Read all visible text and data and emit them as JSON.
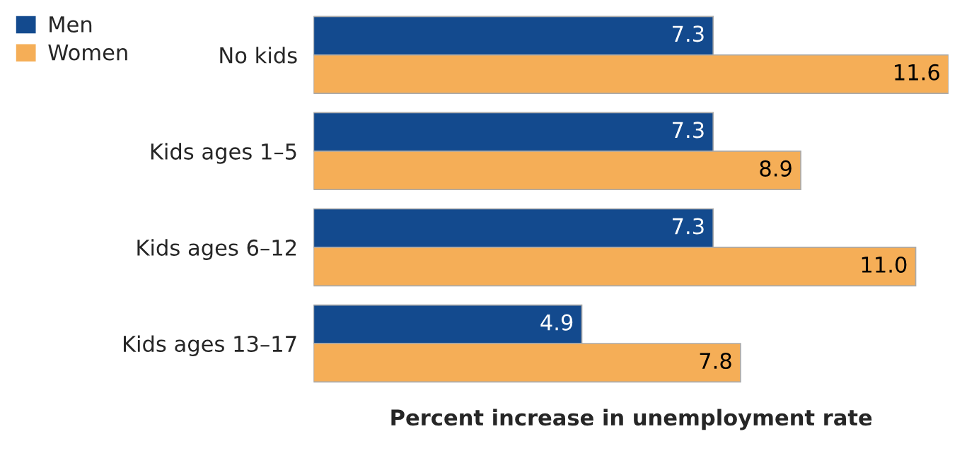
{
  "chart_data": {
    "type": "bar",
    "orientation": "horizontal",
    "xlabel": "Percent increase in unemployment rate",
    "categories": [
      "No kids",
      "Kids ages 1–5",
      "Kids ages 6–12",
      "Kids ages 13–17"
    ],
    "series": [
      {
        "name": "Men",
        "color": "#134a8e",
        "values": [
          7.3,
          7.3,
          7.3,
          4.9
        ],
        "value_labels": [
          "7.3",
          "7.3",
          "7.3",
          "4.9"
        ]
      },
      {
        "name": "Women",
        "color": "#f5ae57",
        "values": [
          11.6,
          8.9,
          11.0,
          7.8
        ],
        "value_labels": [
          "11.6",
          "8.9",
          "11.0",
          "7.8"
        ]
      }
    ],
    "legend": "top left"
  }
}
